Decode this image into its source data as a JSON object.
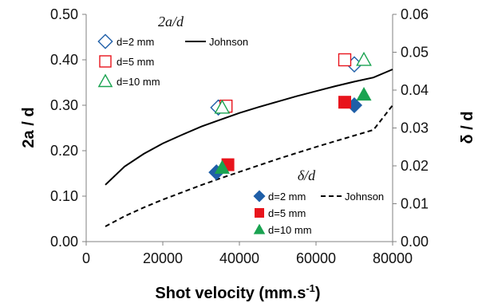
{
  "chart_data": {
    "type": "scatter",
    "xlabel": "Shot velocity (mm.s",
    "xlabel_sup": "-1",
    "xlabel_end": ")",
    "ylabel_left": "2a / d",
    "ylabel_right": "δ / d",
    "xlim": [
      0,
      80000
    ],
    "ylim_left": [
      0,
      0.5
    ],
    "ylim_right": [
      0,
      0.06
    ],
    "x_ticks": [
      0,
      20000,
      40000,
      60000,
      80000
    ],
    "x_tick_labels": [
      "0",
      "20000",
      "40000",
      "60000",
      "80000"
    ],
    "y_left_ticks": [
      0,
      0.1,
      0.2,
      0.3,
      0.4,
      0.5
    ],
    "y_left_tick_labels": [
      "0.00",
      "0.10",
      "0.20",
      "0.30",
      "0.40",
      "0.50"
    ],
    "y_right_ticks": [
      0,
      0.01,
      0.02,
      0.03,
      0.04,
      0.05,
      0.06
    ],
    "y_right_tick_labels": [
      "0.00",
      "0.01",
      "0.02",
      "0.03",
      "0.04",
      "0.05",
      "0.06"
    ],
    "grid": false,
    "colors": {
      "d2": "#1f5fa8",
      "d5": "#e8141c",
      "d10": "#1aa351",
      "johnson": "#000000"
    },
    "groups": [
      {
        "title": "2a/d",
        "axis": "left",
        "marker_fill": "open",
        "legend_position": "top-left",
        "series": [
          {
            "name": "d=2 mm",
            "marker": "diamond",
            "color_key": "d2",
            "points": [
              [
                34500,
                0.295
              ],
              [
                70000,
                0.39
              ]
            ]
          },
          {
            "name": "d=5 mm",
            "marker": "square",
            "color_key": "d5",
            "points": [
              [
                36500,
                0.298
              ],
              [
                67500,
                0.4
              ]
            ]
          },
          {
            "name": "d=10 mm",
            "marker": "triangle",
            "color_key": "d10",
            "points": [
              [
                35500,
                0.295
              ],
              [
                72500,
                0.4
              ]
            ]
          }
        ],
        "model": {
          "name": "Johnson",
          "style": "solid",
          "points": [
            [
              5000,
              0.125
            ],
            [
              10000,
              0.165
            ],
            [
              15000,
              0.193
            ],
            [
              20000,
              0.216
            ],
            [
              25000,
              0.235
            ],
            [
              30000,
              0.253
            ],
            [
              35000,
              0.268
            ],
            [
              40000,
              0.283
            ],
            [
              45000,
              0.296
            ],
            [
              50000,
              0.308
            ],
            [
              55000,
              0.32
            ],
            [
              60000,
              0.331
            ],
            [
              65000,
              0.342
            ],
            [
              70000,
              0.352
            ],
            [
              75000,
              0.361
            ],
            [
              80000,
              0.379
            ]
          ]
        }
      },
      {
        "title": "δ/d",
        "axis": "right",
        "marker_fill": "filled",
        "legend_position": "bottom-right",
        "series": [
          {
            "name": "d=2 mm",
            "marker": "diamond",
            "color_key": "d2",
            "points": [
              [
                34000,
                0.0183
              ],
              [
                70000,
                0.036
              ]
            ]
          },
          {
            "name": "d=5 mm",
            "marker": "square",
            "color_key": "d5",
            "points": [
              [
                37000,
                0.0203
              ],
              [
                67500,
                0.0368
              ]
            ]
          },
          {
            "name": "d=10 mm",
            "marker": "triangle",
            "color_key": "d10",
            "points": [
              [
                35500,
                0.0195
              ],
              [
                72500,
                0.0388
              ]
            ]
          }
        ],
        "model": {
          "name": "Johnson",
          "style": "dashed",
          "points": [
            [
              5000,
              0.004
            ],
            [
              10000,
              0.0067
            ],
            [
              15000,
              0.009
            ],
            [
              20000,
              0.0111
            ],
            [
              25000,
              0.013
            ],
            [
              30000,
              0.0149
            ],
            [
              35000,
              0.0167
            ],
            [
              40000,
              0.0184
            ],
            [
              45000,
              0.0201
            ],
            [
              50000,
              0.0218
            ],
            [
              55000,
              0.0234
            ],
            [
              60000,
              0.025
            ],
            [
              65000,
              0.0265
            ],
            [
              70000,
              0.028
            ],
            [
              75000,
              0.0295
            ],
            [
              80000,
              0.036
            ]
          ]
        }
      }
    ]
  }
}
